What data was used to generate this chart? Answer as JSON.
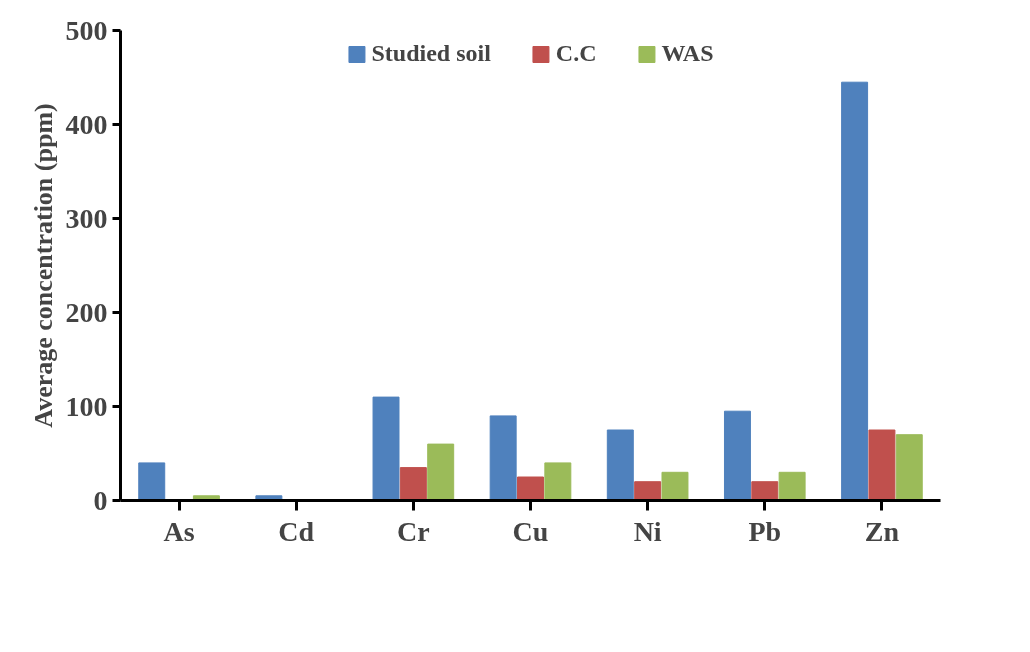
{
  "chart_data": {
    "type": "bar",
    "ylabel": "Average concentration (ppm)",
    "categories": [
      "As",
      "Cd",
      "Cr",
      "Cu",
      "Ni",
      "Pb",
      "Zn"
    ],
    "series": [
      {
        "name": "Studied soil",
        "color": "#4f81bd",
        "values": [
          40,
          5,
          110,
          90,
          75,
          95,
          445
        ]
      },
      {
        "name": "C.C",
        "color": "#c0504d",
        "values": [
          null,
          null,
          35,
          25,
          20,
          20,
          75
        ]
      },
      {
        "name": "WAS",
        "color": "#9bbb59",
        "values": [
          5,
          null,
          60,
          40,
          30,
          30,
          70
        ]
      }
    ],
    "ylim": [
      0,
      500
    ],
    "yticks": [
      0,
      100,
      200,
      300,
      400,
      500
    ],
    "grid": false,
    "legend": "top"
  }
}
